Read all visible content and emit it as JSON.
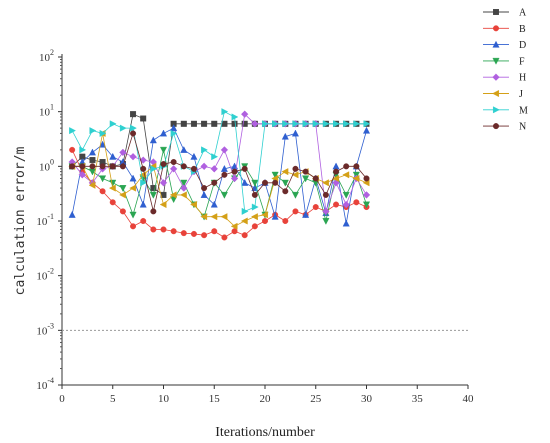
{
  "chart_data": {
    "type": "line",
    "xlabel": "Iterations/number",
    "ylabel": "calculation error/m",
    "xlim": [
      0,
      40
    ],
    "ylim": [
      0.0001,
      100
    ],
    "yscale": "log",
    "xticks": [
      0,
      5,
      10,
      15,
      20,
      25,
      30,
      35,
      40
    ],
    "xtick_labels": [
      "0",
      "5",
      "10",
      "15",
      "20",
      "25",
      "30",
      "35",
      "40"
    ],
    "yticks": [
      0.0001,
      0.001,
      0.01,
      0.1,
      1,
      10,
      100
    ],
    "ytick_labels": [
      {
        "base": "10",
        "exp": "-4"
      },
      {
        "base": "10",
        "exp": "-3"
      },
      {
        "base": "10",
        "exp": "-2"
      },
      {
        "base": "10",
        "exp": "-1"
      },
      {
        "base": "10",
        "exp": "0"
      },
      {
        "base": "10",
        "exp": "1"
      },
      {
        "base": "10",
        "exp": "2"
      }
    ],
    "grid": false,
    "legend": "top-right-outside",
    "reference_line": {
      "y": 0.001,
      "style": "dotted",
      "color": "#999999"
    },
    "x": [
      1,
      2,
      3,
      4,
      5,
      6,
      7,
      8,
      9,
      10,
      11,
      12,
      13,
      14,
      15,
      16,
      17,
      18,
      19,
      20,
      21,
      22,
      23,
      24,
      25,
      26,
      27,
      28,
      29,
      30
    ],
    "series": [
      {
        "name": "A",
        "color": "#444444",
        "marker": "square",
        "values": [
          1.0,
          1.5,
          1.3,
          1.2,
          1.0,
          1.1,
          9.0,
          7.5,
          0.4,
          0.3,
          6.0,
          6.0,
          6.0,
          6.0,
          6.0,
          6.0,
          6.0,
          6.0,
          6.0,
          6.0,
          6.0,
          6.0,
          6.0,
          6.0,
          6.0,
          6.0,
          6.0,
          6.0,
          6.0,
          6.0
        ]
      },
      {
        "name": "B",
        "color": "#e8423a",
        "marker": "circle",
        "values": [
          2.0,
          0.8,
          0.5,
          0.35,
          0.22,
          0.15,
          0.08,
          0.1,
          0.07,
          0.07,
          0.065,
          0.06,
          0.058,
          0.055,
          0.065,
          0.05,
          0.065,
          0.055,
          0.08,
          0.1,
          0.13,
          0.1,
          0.15,
          0.13,
          0.18,
          0.15,
          0.2,
          0.18,
          0.22,
          0.18
        ]
      },
      {
        "name": "D",
        "color": "#2f5fd0",
        "marker": "triangle-up",
        "values": [
          0.13,
          1.2,
          1.8,
          2.5,
          1.5,
          1.2,
          0.6,
          0.2,
          3.0,
          4.0,
          5.0,
          2.0,
          1.5,
          0.3,
          0.2,
          0.9,
          1.0,
          0.5,
          0.4,
          0.5,
          0.12,
          3.5,
          4.0,
          0.13,
          0.6,
          0.14,
          1.0,
          0.09,
          1.0,
          4.5
        ]
      },
      {
        "name": "F",
        "color": "#2aa552",
        "marker": "triangle-down",
        "values": [
          1.0,
          1.0,
          0.8,
          0.6,
          0.5,
          0.4,
          0.13,
          0.6,
          0.3,
          2.0,
          0.25,
          0.5,
          0.2,
          0.12,
          0.5,
          0.3,
          0.6,
          1.0,
          0.5,
          0.13,
          0.7,
          0.5,
          0.3,
          0.6,
          0.5,
          0.1,
          0.7,
          0.3,
          0.7,
          0.2
        ]
      },
      {
        "name": "H",
        "color": "#b060e0",
        "marker": "diamond",
        "values": [
          1.2,
          0.7,
          0.5,
          0.9,
          1.0,
          1.8,
          1.5,
          1.3,
          1.2,
          0.5,
          0.9,
          0.4,
          0.8,
          1.0,
          0.9,
          2.0,
          0.6,
          9.0,
          6.0,
          6.0,
          6.0,
          6.0,
          6.0,
          6.0,
          6.0,
          0.15,
          0.5,
          0.2,
          0.6,
          0.3
        ]
      },
      {
        "name": "J",
        "color": "#d4a017",
        "marker": "triangle-left",
        "values": [
          1.0,
          1.0,
          0.45,
          4.0,
          0.4,
          0.3,
          0.4,
          0.7,
          1.0,
          0.2,
          0.3,
          0.3,
          0.2,
          0.12,
          0.12,
          0.12,
          0.08,
          0.1,
          0.12,
          0.13,
          0.6,
          0.8,
          0.7,
          0.8,
          0.6,
          0.5,
          0.6,
          0.7,
          0.6,
          0.5
        ]
      },
      {
        "name": "M",
        "color": "#2fd0d0",
        "marker": "triangle-right",
        "values": [
          4.5,
          2.0,
          4.5,
          4.0,
          6.0,
          5.0,
          5.0,
          0.5,
          0.9,
          1.0,
          4.0,
          1.0,
          0.8,
          2.0,
          1.5,
          10.0,
          8.0,
          0.15,
          0.18,
          6.0,
          6.0,
          6.0,
          6.0,
          6.0,
          6.0,
          6.0,
          6.0,
          6.0,
          6.0,
          6.0
        ]
      },
      {
        "name": "N",
        "color": "#6b2a2a",
        "marker": "circle",
        "values": [
          1.0,
          1.0,
          1.0,
          1.0,
          1.0,
          1.0,
          4.0,
          0.9,
          0.15,
          1.1,
          1.2,
          1.0,
          0.9,
          0.4,
          0.5,
          0.7,
          0.8,
          0.9,
          0.3,
          0.5,
          0.5,
          0.35,
          0.9,
          0.8,
          0.6,
          0.3,
          0.8,
          1.0,
          1.0,
          0.6
        ]
      }
    ]
  }
}
